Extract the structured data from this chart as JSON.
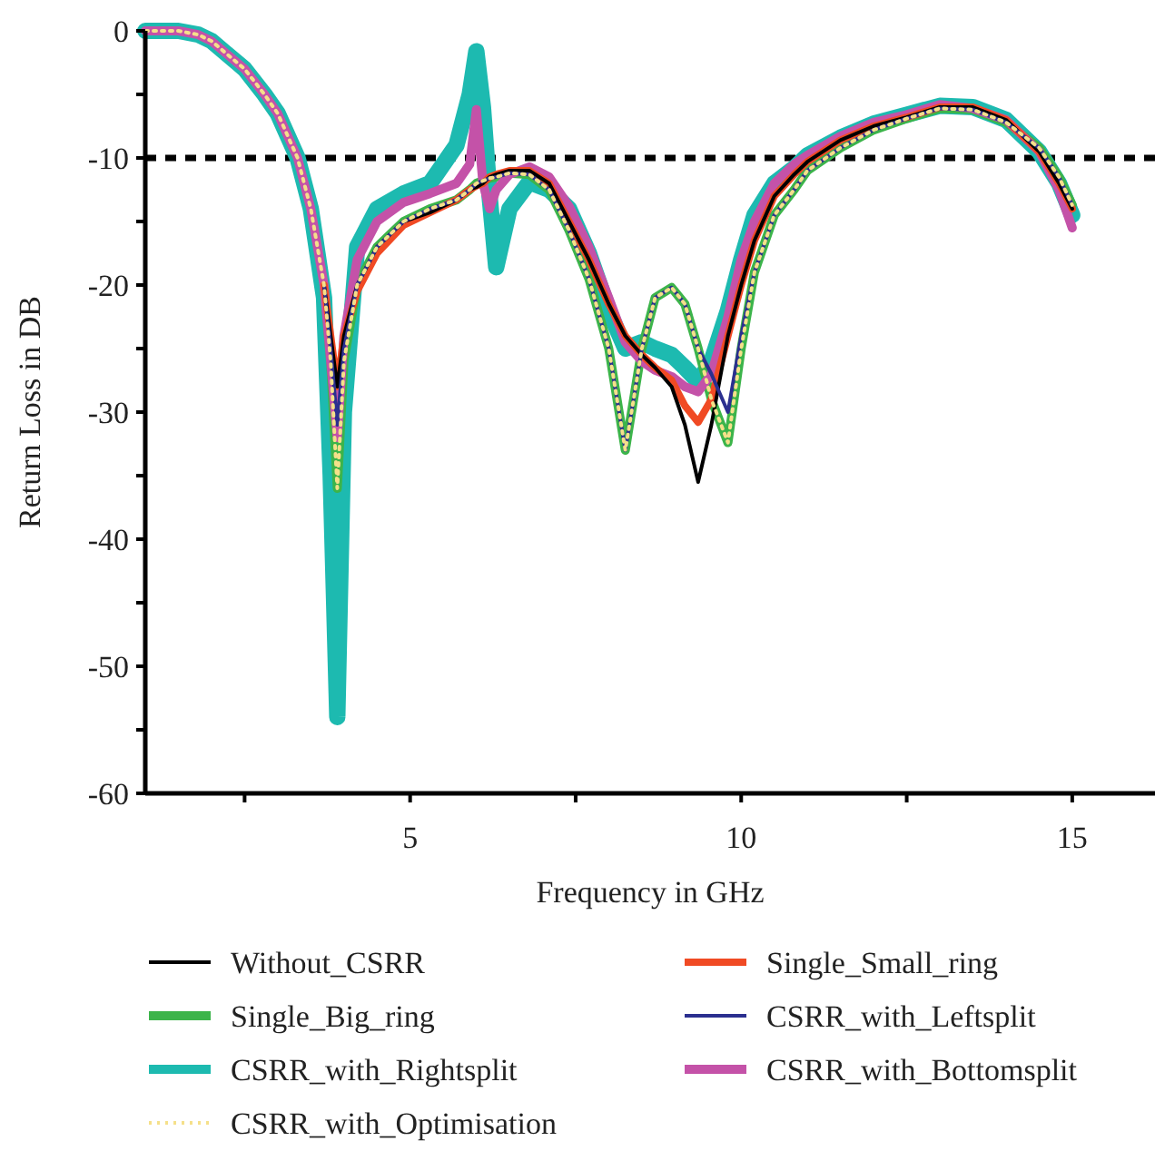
{
  "chart_data": {
    "type": "line",
    "xlabel": "Frequency in GHz",
    "ylabel": "Return Loss in DB",
    "xlim": [
      1,
      16.25
    ],
    "ylim": [
      -60,
      0
    ],
    "xticks": [
      {
        "value": 2.5,
        "label": null
      },
      5,
      {
        "value": 7.5,
        "label": null
      },
      10,
      {
        "value": 12.5,
        "label": null
      },
      15
    ],
    "yticks": [
      {
        "value": -60,
        "label": "-60"
      },
      {
        "value": -55,
        "label": null
      },
      {
        "value": -50,
        "label": "-50"
      },
      {
        "value": -45,
        "label": null
      },
      {
        "value": -40,
        "label": "-40"
      },
      {
        "value": -35,
        "label": null
      },
      {
        "value": -30,
        "label": "-30"
      },
      {
        "value": -25,
        "label": null
      },
      {
        "value": -20,
        "label": "-20"
      },
      {
        "value": -15,
        "label": null
      },
      {
        "value": -10,
        "label": "-10"
      },
      {
        "value": -5,
        "label": null
      },
      0
    ],
    "grid": false,
    "legend": "bottom",
    "marker": "none",
    "ref_lines": [
      {
        "axis": "y",
        "value": -10,
        "color": "#000000",
        "line_style": "dashed"
      }
    ],
    "x": [
      1,
      1.5,
      1.8,
      2,
      2.5,
      2.8,
      3,
      3.3,
      3.5,
      3.7,
      3.8,
      3.9,
      4,
      4.2,
      4.5,
      4.9,
      5.3,
      5.7,
      5.9,
      6,
      6.1,
      6.2,
      6.3,
      6.5,
      6.8,
      7.1,
      7.4,
      7.7,
      8,
      8.25,
      8.5,
      8.7,
      8.95,
      9.15,
      9.35,
      9.55,
      9.8,
      10,
      10.2,
      10.5,
      10.8,
      11,
      11.5,
      12,
      12.5,
      13,
      13.5,
      14,
      14.5,
      14.8,
      15
    ],
    "series": [
      {
        "name": "Without_CSRR",
        "color": "#000000",
        "values": [
          null,
          null,
          null,
          null,
          null,
          null,
          null,
          null,
          null,
          -20,
          -24,
          -28,
          -24,
          -20,
          -17,
          -15,
          -14.3,
          -13.3,
          -12.5,
          -12.3,
          -12,
          -11.5,
          -11.3,
          -11,
          -11,
          -12,
          -15,
          -18,
          -21.5,
          -24,
          -25.5,
          -26.5,
          -28,
          -31,
          -35.5,
          -31,
          -24,
          -20,
          -16.5,
          -13,
          -11.3,
          -10.3,
          -8.6,
          -7.5,
          -6.8,
          -6,
          -6,
          -7,
          -9.5,
          -12,
          -14
        ]
      },
      {
        "name": "Single_Small_ring",
        "color": "#f04a24",
        "values": [
          null,
          null,
          null,
          null,
          null,
          null,
          null,
          null,
          null,
          -20,
          -24,
          -28,
          -24,
          -20.5,
          -17.5,
          -15.3,
          -14.3,
          -13.3,
          -12.5,
          -12.2,
          -12,
          -11.5,
          -11.3,
          -11,
          -11,
          -12,
          -15,
          -18,
          -21.5,
          -24,
          -25.5,
          -26.5,
          -27.5,
          -29.5,
          -30.8,
          -29,
          -24,
          -20,
          -16.5,
          -13,
          -11.3,
          -10.3,
          -8.6,
          -7.5,
          -6.8,
          -6,
          -6,
          -7,
          -9.5,
          -12,
          -14
        ]
      },
      {
        "name": "Single_Big_ring",
        "color": "#3cb44a",
        "values": [
          null,
          null,
          null,
          null,
          null,
          null,
          null,
          null,
          null,
          -20,
          -26,
          -36,
          -26,
          -20,
          -17,
          -15,
          -14,
          -13.3,
          -12.5,
          -12,
          -11.8,
          -11.6,
          -11.5,
          -11.2,
          -11.3,
          -12.5,
          -15.7,
          -19.5,
          -25,
          -33,
          -25,
          -21,
          -20.2,
          -21.5,
          -25,
          -29,
          -32.4,
          -25,
          -19,
          -14.5,
          -12.5,
          -11,
          -9.2,
          -7.8,
          -6.9,
          -6.1,
          -6.2,
          -7.2,
          -9.2,
          -11.5,
          -13.7
        ]
      },
      {
        "name": "CSRR_with_Leftsplit",
        "color": "#2b2f8f",
        "values": [
          null,
          null,
          null,
          null,
          null,
          null,
          null,
          null,
          null,
          -20,
          -25,
          -31,
          -25,
          -20,
          -17,
          -15,
          -14,
          -13.3,
          -12.5,
          -12,
          -11.8,
          -11.6,
          -11.5,
          -11.2,
          -11.3,
          -12.5,
          -15.7,
          -19.5,
          -25,
          -33,
          -25,
          -21,
          -20.2,
          -21.5,
          -25,
          -27,
          -30,
          -24,
          -19,
          -14.5,
          -12.5,
          -11,
          -9.2,
          -7.8,
          -6.9,
          -6.1,
          -6.2,
          -7.2,
          -9.2,
          -11.5,
          -13.7
        ]
      },
      {
        "name": "CSRR_with_Rightsplit",
        "color": "#1dbab0",
        "values": [
          0,
          0,
          -0.3,
          -0.8,
          -3,
          -5,
          -6.5,
          -10,
          -14,
          -21,
          -35,
          -54,
          -30,
          -17,
          -14,
          -12.8,
          -12,
          -9,
          -5,
          -1.6,
          -6,
          -13,
          -18.6,
          -14,
          -11.9,
          -12.5,
          -14,
          -17.5,
          -22,
          -25,
          -24.5,
          -25,
          -25.5,
          -26.5,
          -27.6,
          -26,
          -22,
          -18,
          -14.5,
          -12,
          -10.8,
          -9.8,
          -8.4,
          -7.3,
          -6.6,
          -5.9,
          -6,
          -7,
          -9.5,
          -12,
          -14.5
        ]
      },
      {
        "name": "CSRR_with_Bottomsplit",
        "color": "#c452a8",
        "values": [
          0,
          0,
          -0.3,
          -0.8,
          -3,
          -5,
          -6.5,
          -10,
          -14,
          -20,
          -26,
          -32,
          -24,
          -18,
          -15,
          -13.5,
          -12.8,
          -12,
          -10.5,
          -6.2,
          -12,
          -14,
          -12.5,
          -11.3,
          -10.7,
          -11.5,
          -13.8,
          -17,
          -21,
          -24.5,
          -26,
          -26.7,
          -27.2,
          -28,
          -28.4,
          -27,
          -22.5,
          -18,
          -15,
          -12,
          -10.5,
          -9.8,
          -8.3,
          -7.2,
          -6.6,
          -5.8,
          -6.1,
          -7,
          -9.5,
          -12.5,
          -15.5
        ]
      },
      {
        "name": "CSRR_with_Optimisation",
        "color": "#f5e08a",
        "line_style": "dotted",
        "values": [
          0,
          0,
          -0.3,
          -0.8,
          -3,
          -5,
          -6.5,
          -10,
          -14,
          -20,
          -26,
          -36,
          -26,
          -20,
          -17,
          -15,
          -14,
          -13.3,
          -12.5,
          -12,
          -11.8,
          -11.6,
          -11.5,
          -11.2,
          -11.3,
          -12.5,
          -15.7,
          -19.5,
          -25,
          -33,
          -25,
          -21,
          -20.2,
          -21.5,
          -25,
          -29,
          -32.4,
          -25,
          -19,
          -14.5,
          -12.5,
          -11,
          -9.2,
          -7.8,
          -6.9,
          -6.1,
          -6.2,
          -7.2,
          -9.2,
          -11.5,
          -13.7
        ]
      }
    ]
  }
}
